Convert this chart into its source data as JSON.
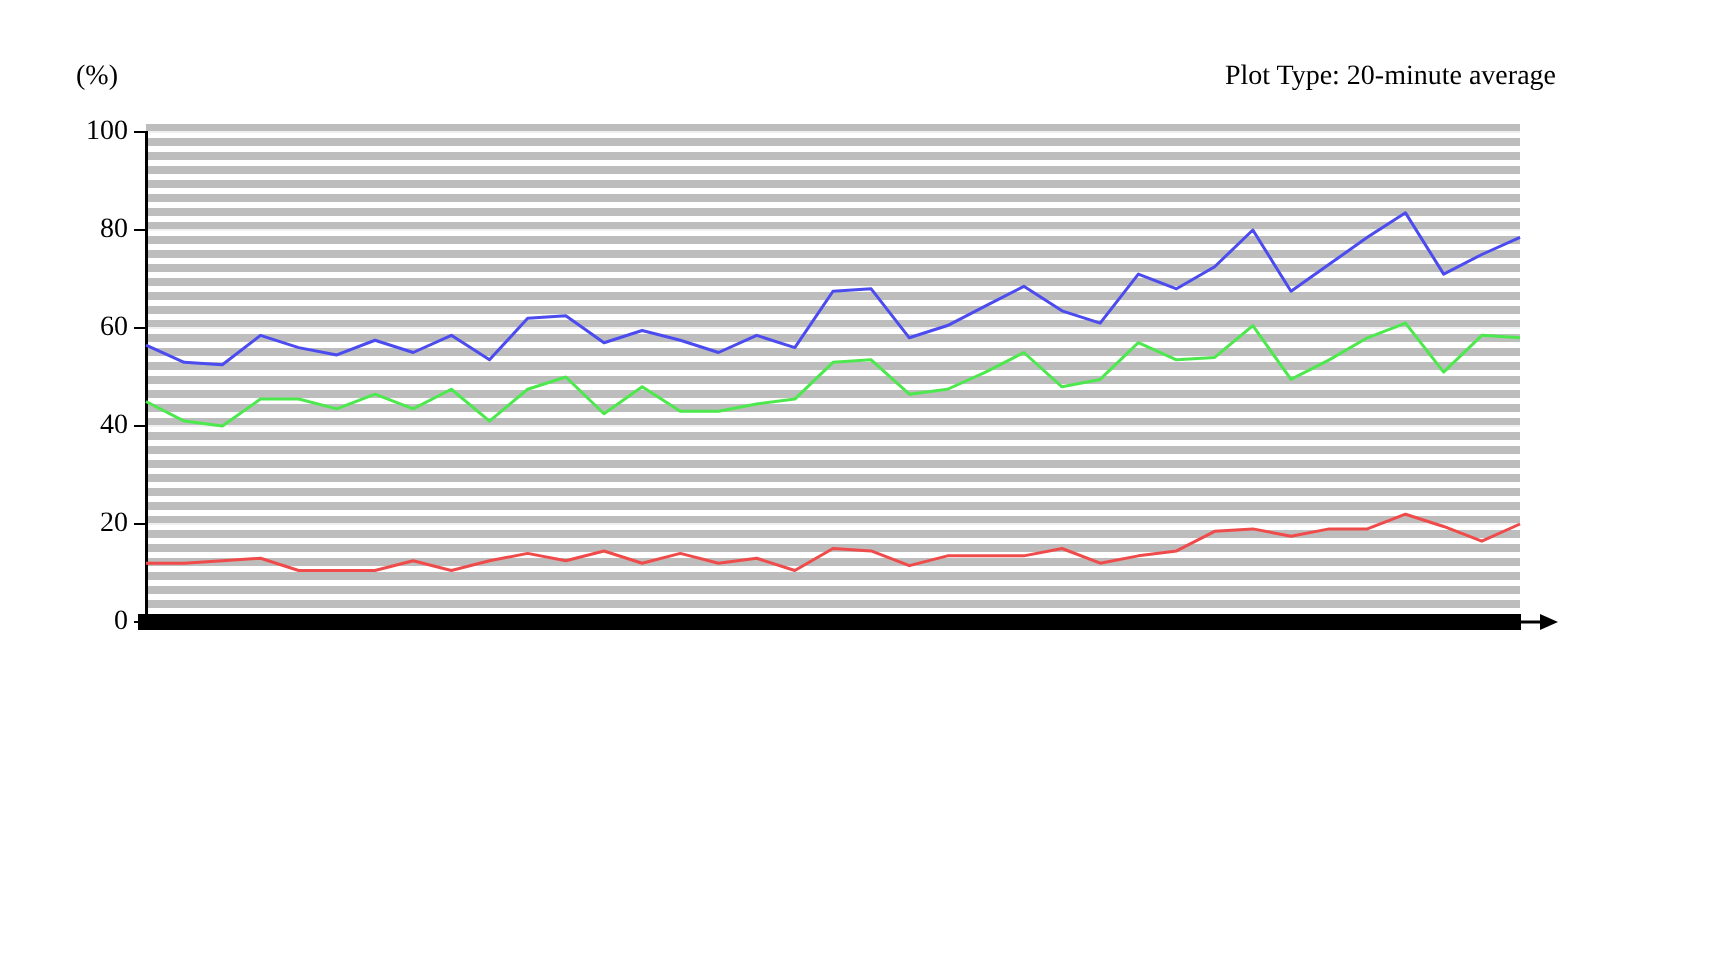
{
  "chart_data": {
    "type": "line",
    "title": "Plot Type: 20-minute average",
    "ylabel": "(%)",
    "categories": [
      null,
      null,
      null,
      null,
      null,
      null,
      null,
      null,
      null,
      null,
      null,
      null,
      null,
      null,
      null,
      null,
      null,
      null,
      null,
      null,
      null,
      null,
      null,
      null,
      null,
      null,
      null,
      null,
      null,
      null,
      null,
      null,
      null,
      null,
      null,
      null,
      null
    ],
    "series": [
      {
        "color": "#4b4bf0",
        "values": [
          56.5,
          53,
          52.5,
          58.5,
          56,
          54.5,
          57.5,
          55,
          58.5,
          53.5,
          62,
          62.5,
          57,
          59.5,
          57.5,
          55,
          58.5,
          56,
          67.5,
          68,
          58,
          60.5,
          64.5,
          68.5,
          63.5,
          61,
          71,
          68,
          72.5,
          80,
          67.5,
          73,
          78.5,
          83.5,
          71,
          75,
          78.5
        ]
      },
      {
        "color": "#4de84d",
        "values": [
          45,
          41,
          40,
          45.5,
          45.5,
          43.5,
          46.5,
          43.5,
          47.5,
          41,
          47.5,
          50,
          42.5,
          48,
          43,
          43,
          44.5,
          45.5,
          53,
          53.5,
          46.5,
          47.5,
          51,
          55,
          48,
          49.5,
          57,
          53.5,
          54,
          60.5,
          49.5,
          53.5,
          58,
          61,
          51,
          58.5,
          58
        ]
      },
      {
        "color": "#f04b4b",
        "values": [
          12,
          12,
          12.5,
          13,
          10.5,
          10.5,
          10.5,
          12.5,
          10.5,
          12.5,
          14,
          12.5,
          14.5,
          12,
          14,
          12,
          13,
          10.5,
          15,
          14.5,
          11.5,
          13.5,
          13.5,
          13.5,
          15,
          12,
          13.5,
          14.5,
          18.5,
          19,
          17.5,
          19,
          19,
          22,
          19.5,
          16.5,
          20
        ]
      }
    ],
    "ylim": [
      0,
      100
    ],
    "yticks": [
      0,
      20,
      40,
      60,
      80,
      100
    ],
    "grid": "y",
    "tick_labels": "y",
    "legend": false,
    "marker": "none",
    "line_style": "solid"
  }
}
